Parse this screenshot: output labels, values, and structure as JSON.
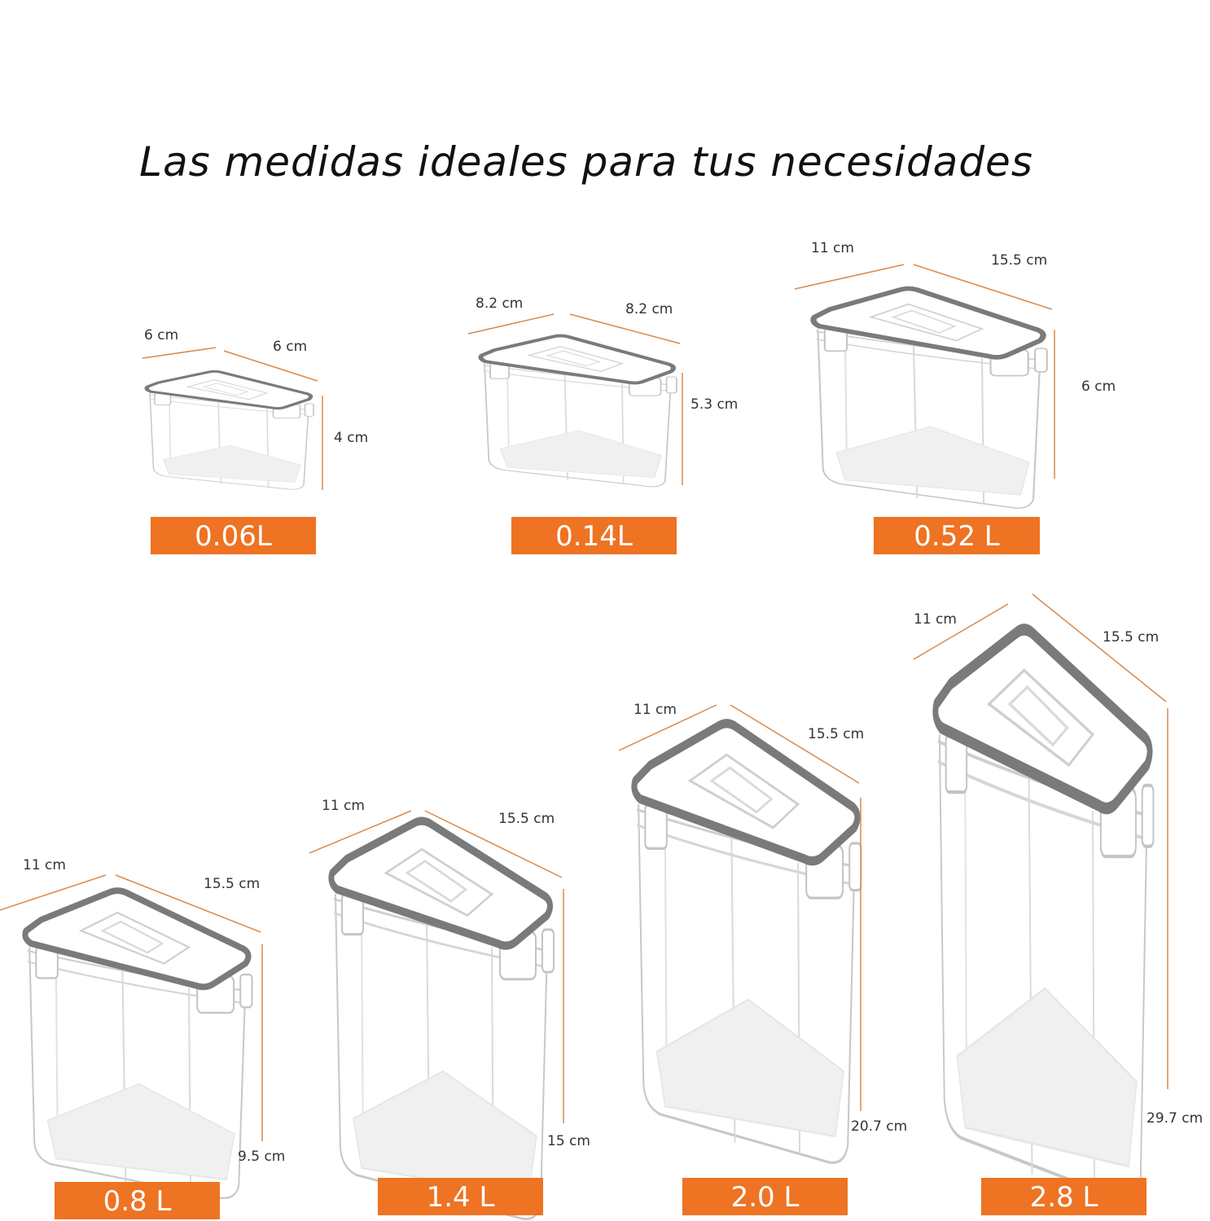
{
  "title": "Las medidas ideales para tus necesidades",
  "colors": {
    "accent": "#ee7323",
    "lid": "#7a7a7a",
    "outline": "#c8c8c8"
  },
  "containers": [
    {
      "volume": "0.06L",
      "width": "6 cm",
      "depth": "6 cm",
      "height": "4 cm"
    },
    {
      "volume": "0.14L",
      "width": "8.2 cm",
      "depth": "8.2 cm",
      "height": "5.3 cm"
    },
    {
      "volume": "0.52 L",
      "width": "11 cm",
      "depth": "15.5 cm",
      "height": "6 cm"
    },
    {
      "volume": "0.8 L",
      "width": "11 cm",
      "depth": "15.5 cm",
      "height": "9.5 cm"
    },
    {
      "volume": "1.4 L",
      "width": "11 cm",
      "depth": "15.5 cm",
      "height": "15 cm"
    },
    {
      "volume": "2.0 L",
      "width": "11 cm",
      "depth": "15.5 cm",
      "height": "20.7 cm"
    },
    {
      "volume": "2.8 L",
      "width": "11 cm",
      "depth": "15.5 cm",
      "height": "29.7 cm"
    }
  ]
}
